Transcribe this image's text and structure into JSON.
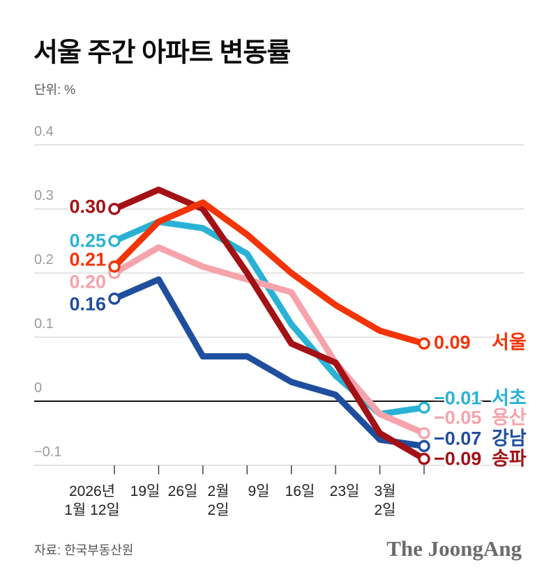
{
  "header": {
    "title": "서울 주간 아파트 변동률",
    "unit_label": "단위: %"
  },
  "footer": {
    "source_label": "자료: 한국부동산원",
    "logo_text": "The JoongAng"
  },
  "chart_data": {
    "type": "line",
    "title": "서울 주간 아파트 변동률",
    "unit": "%",
    "legend_position": "line-end-labels",
    "grid": true,
    "x_tick_labels": [
      [
        "2026년",
        "1월 12일"
      ],
      [
        "19일"
      ],
      [
        "26일"
      ],
      [
        "2월",
        "2일"
      ],
      [
        "9일"
      ],
      [
        "16일"
      ],
      [
        "23일"
      ],
      [
        "3월",
        "2일"
      ]
    ],
    "y_ticks": [
      {
        "value": 0.4,
        "label": "0.4"
      },
      {
        "value": 0.3,
        "label": "0.3"
      },
      {
        "value": 0.2,
        "label": "0.2"
      },
      {
        "value": 0.1,
        "label": "0.1"
      },
      {
        "value": 0,
        "label": "0"
      },
      {
        "value": -0.1,
        "label": "−0.1"
      }
    ],
    "ylim": [
      -0.13,
      0.44
    ],
    "series": [
      {
        "name": "강남",
        "color": "#1f4e9e",
        "values": [
          0.16,
          0.19,
          0.07,
          0.07,
          0.03,
          0.01,
          -0.06,
          -0.07
        ],
        "start_label": "0.16",
        "end_label": "−0.07"
      },
      {
        "name": "서초",
        "color": "#2ab2d6",
        "values": [
          0.25,
          0.28,
          0.27,
          0.23,
          0.12,
          0.04,
          -0.02,
          -0.01
        ],
        "start_label": "0.25",
        "end_label": "−0.01"
      },
      {
        "name": "용산",
        "color": "#f7a3ab",
        "values": [
          0.2,
          0.24,
          0.21,
          0.19,
          0.17,
          0.06,
          -0.02,
          -0.05
        ],
        "start_label": "0.20",
        "end_label": "−0.05"
      },
      {
        "name": "송파",
        "color": "#a31115",
        "values": [
          0.3,
          0.33,
          0.3,
          0.2,
          0.09,
          0.06,
          -0.05,
          -0.09
        ],
        "start_label": "0.30",
        "end_label": "−0.09"
      },
      {
        "name": "서울",
        "color": "#f23407",
        "values": [
          0.21,
          0.28,
          0.31,
          0.26,
          0.2,
          0.15,
          0.11,
          0.09
        ],
        "start_label": "0.21",
        "end_label": "0.09"
      }
    ],
    "colors": {
      "grid": "#d4d4d4",
      "zero_line": "#111111",
      "axis_tick": "#444444",
      "tick_text": "#9b9b9b",
      "x_text": "#222222"
    }
  }
}
